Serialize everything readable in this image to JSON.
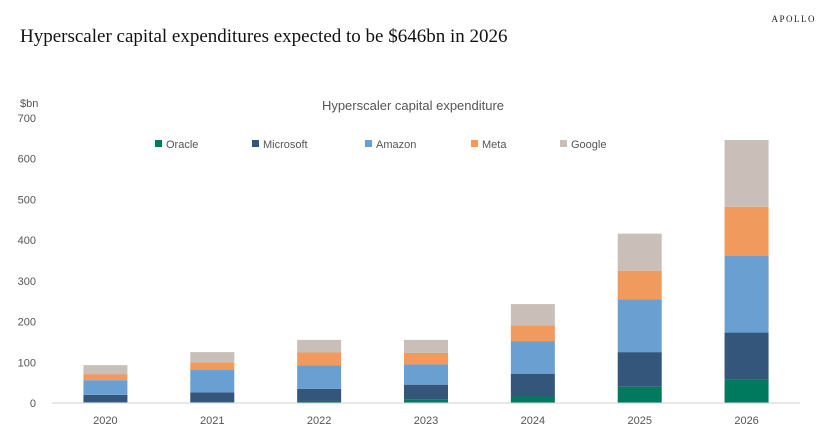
{
  "brand": "APOLLO",
  "headline": "Hyperscaler capital expenditures expected to be $646bn in 2026",
  "chart_data": {
    "type": "bar",
    "stacked": true,
    "title": "Hyperscaler capital expenditure",
    "ylabel": "$bn",
    "xlabel": "",
    "ylim": [
      0,
      700
    ],
    "yticks": [
      0,
      100,
      200,
      300,
      400,
      500,
      600,
      700
    ],
    "grid": false,
    "legend_position": "top",
    "categories": [
      "2020",
      "2021",
      "2022",
      "2023",
      "2024",
      "2025",
      "2026"
    ],
    "series": [
      {
        "name": "Oracle",
        "color": "#007a5e",
        "values": [
          2,
          2,
          5,
          8,
          16,
          40,
          58
        ]
      },
      {
        "name": "Microsoft",
        "color": "#33567a",
        "values": [
          18,
          24,
          30,
          37,
          56,
          85,
          115
        ]
      },
      {
        "name": "Amazon",
        "color": "#6a9fd2",
        "values": [
          36,
          55,
          57,
          50,
          80,
          130,
          188
        ]
      },
      {
        "name": "Meta",
        "color": "#f09a5e",
        "values": [
          15,
          19,
          32,
          28,
          39,
          70,
          121
        ]
      },
      {
        "name": "Google",
        "color": "#c9bfb8",
        "values": [
          22,
          25,
          31,
          32,
          52,
          91,
          164
        ]
      }
    ]
  }
}
